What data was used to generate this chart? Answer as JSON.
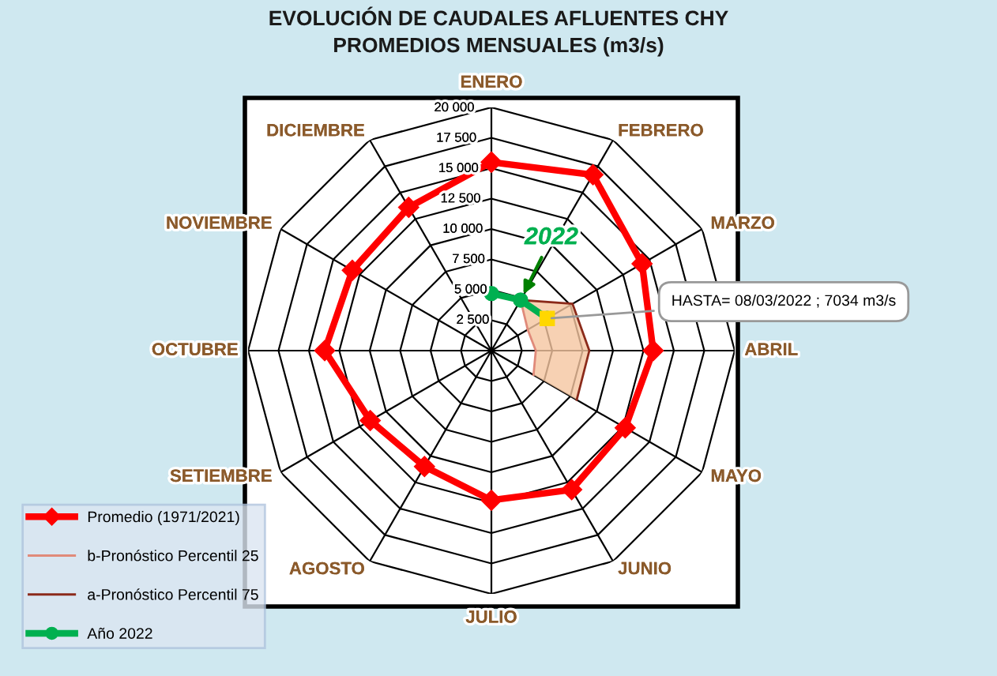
{
  "chart_data": {
    "type": "radar",
    "title": "EVOLUCIÓN DE CAUDALES AFLUENTES CHY\nPROMEDIOS MENSUALES (m3/s)",
    "categories": [
      "ENERO",
      "FEBRERO",
      "MARZO",
      "ABRIL",
      "MAYO",
      "JUNIO",
      "JULIO",
      "AGOSTO",
      "SETIEMBRE",
      "OCTUBRE",
      "NOVIEMBRE",
      "DICIEMBRE"
    ],
    "ylim": [
      0,
      20000
    ],
    "yticks": [
      {
        "value": 2500,
        "label": "2 500"
      },
      {
        "value": 5000,
        "label": "5 000"
      },
      {
        "value": 7500,
        "label": "7 500"
      },
      {
        "value": 10000,
        "label": "10 000"
      },
      {
        "value": 12500,
        "label": "12 500"
      },
      {
        "value": 15000,
        "label": "15 000"
      },
      {
        "value": 17500,
        "label": "17 500"
      },
      {
        "value": 20000,
        "label": "20 000"
      }
    ],
    "series": [
      {
        "name": "Promedio (1971/2021)",
        "color": "#ff0000",
        "marker": "diamond",
        "values": [
          15500,
          16700,
          14300,
          13300,
          12700,
          13200,
          12300,
          11000,
          11500,
          13700,
          13200,
          13600
        ]
      },
      {
        "name": "b-Pronóstico Percentil 25",
        "color": "#e08a7a",
        "marker": "none",
        "values": [
          null,
          4800,
          3450,
          3650,
          4000,
          null,
          null,
          null,
          null,
          null,
          null,
          null
        ]
      },
      {
        "name": "a-Pronóstico Percentil 75",
        "color": "#8b2a1a",
        "marker": "none",
        "values": [
          null,
          4800,
          7700,
          8050,
          8100,
          null,
          null,
          null,
          null,
          null,
          null,
          null
        ]
      },
      {
        "name": "Año 2022",
        "color": "#00b050",
        "marker": "circle",
        "values": [
          4700,
          4800,
          5300,
          null,
          null,
          null,
          null,
          null,
          null,
          null,
          null,
          null
        ]
      }
    ],
    "annotations": [
      {
        "text": "2022",
        "x": "FEBRERO"
      },
      {
        "text": "HASTA= 08/03/2022 ; 7034 m3/s",
        "x": "MARZO"
      }
    ],
    "legend": "bottom left",
    "grid": true
  }
}
